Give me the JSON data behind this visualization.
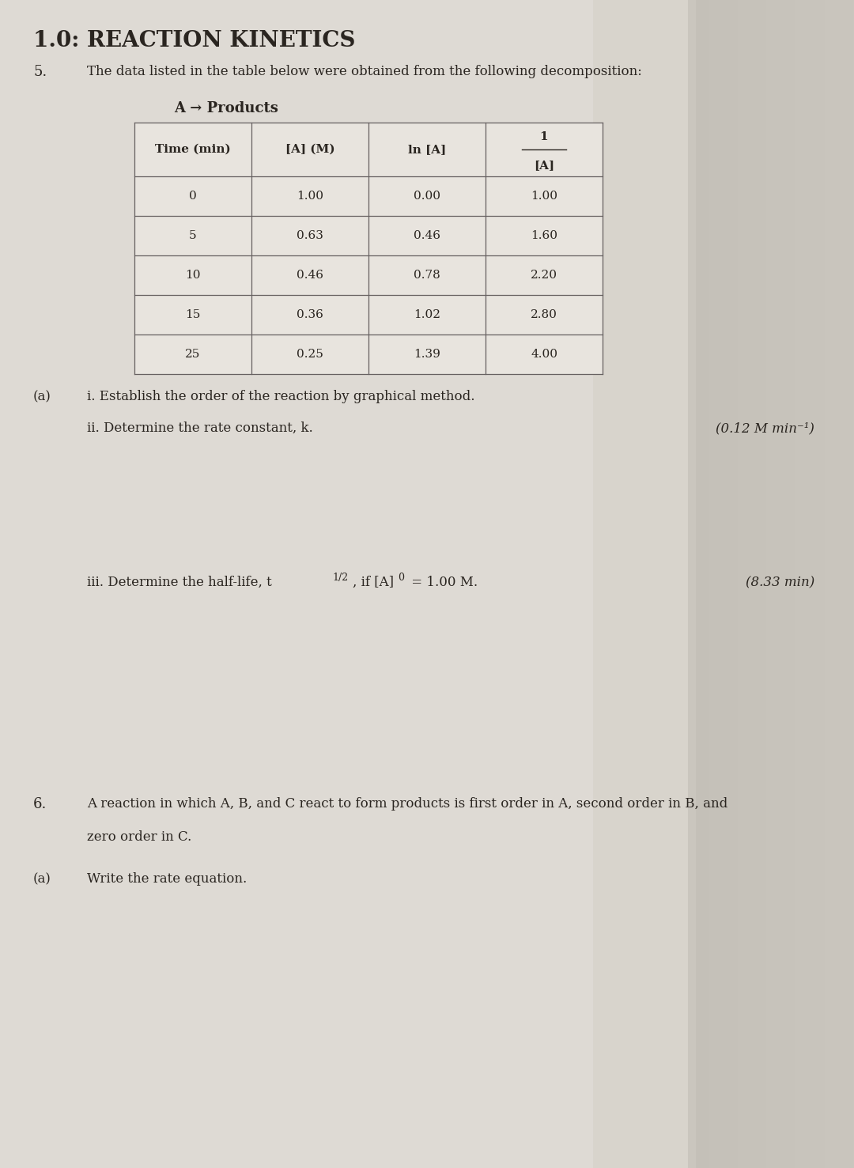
{
  "bg_color": "#c8c4bc",
  "page_color": "#dedad4",
  "title": "1.0: REACTION KINETICS",
  "q5_label": "5.",
  "q5_text": "The data listed in the table below were obtained from the following decomposition:",
  "reaction": "A → Products",
  "table_col0": [
    "0",
    "5",
    "10",
    "15",
    "25"
  ],
  "table_col1": [
    "1.00",
    "0.63",
    "0.46",
    "0.36",
    "0.25"
  ],
  "table_col2": [
    "0.00",
    "0.46",
    "0.78",
    "1.02",
    "1.39"
  ],
  "table_col3": [
    "1.00",
    "1.60",
    "2.20",
    "2.80",
    "4.00"
  ],
  "qa_label": "(a)",
  "qi_text": "i. Establish the order of the reaction by graphical method.",
  "qii_text": "ii. Determine the rate constant, k.",
  "qii_answer": "(0.12 M min⁻¹)",
  "qiii_answer": "(8.33 min)",
  "q6_label": "6.",
  "q6_line1": "A reaction in which A, B, and C react to form products is first order in A, second order in B, and",
  "q6_line2": "zero order in C.",
  "qa2_label": "(a)",
  "qa2_text": "Write the rate equation.",
  "text_color": "#2a2520",
  "table_line_color": "#666060",
  "table_bg": "#e8e4de"
}
